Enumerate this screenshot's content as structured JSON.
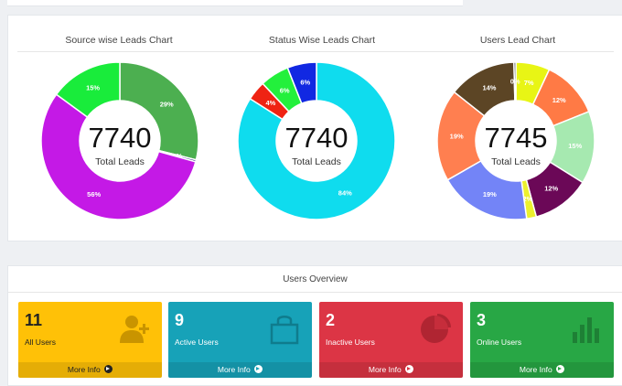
{
  "charts": [
    {
      "title": "Source wise Leads Chart",
      "center_value": "7740",
      "center_label": "Total Leads",
      "segments": [
        {
          "value": 29,
          "color": "#4caf50",
          "label": "29%"
        },
        {
          "value": 0.4,
          "color": "#1a237e",
          "label": "0%"
        },
        {
          "value": 56,
          "color": "#c419e6",
          "label": "56%"
        },
        {
          "value": 15,
          "color": "#19ec3b",
          "label": "15%"
        }
      ]
    },
    {
      "title": "Status Wise Leads Chart",
      "center_value": "7740",
      "center_label": "Total Leads",
      "segments": [
        {
          "value": 84,
          "color": "#0fdcee",
          "label": "84%"
        },
        {
          "value": 4,
          "color": "#ef2313",
          "label": "4%"
        },
        {
          "value": 6,
          "color": "#23f03c",
          "label": "6%"
        },
        {
          "value": 6,
          "color": "#1128e2",
          "label": "6%"
        }
      ]
    },
    {
      "title": "Users Lead Chart",
      "center_value": "7745",
      "center_label": "Total Leads",
      "segments": [
        {
          "value": 7,
          "color": "#e8f515",
          "label": "7%"
        },
        {
          "value": 12,
          "color": "#ff7a45",
          "label": "12%"
        },
        {
          "value": 15,
          "color": "#a6e9b0",
          "label": "15%"
        },
        {
          "value": 12,
          "color": "#6b0857",
          "label": "12%"
        },
        {
          "value": 2,
          "color": "#ecf02e",
          "label": "2%"
        },
        {
          "value": 19,
          "color": "#7384f7",
          "label": "19%"
        },
        {
          "value": 19,
          "color": "#ff7f50",
          "label": "19%"
        },
        {
          "value": 14,
          "color": "#5c4525",
          "label": "14%"
        },
        {
          "value": 0.4,
          "color": "#1a1a1a",
          "label": "0%"
        }
      ]
    }
  ],
  "users_overview": {
    "title": "Users Overview",
    "boxes": [
      {
        "count": "11",
        "label": "All Users",
        "more": "More Info",
        "color": "#ffc107",
        "icon": "user-plus-icon"
      },
      {
        "count": "9",
        "label": "Active Users",
        "more": "More Info",
        "color": "#17a2b8",
        "icon": "shopping-bag-icon"
      },
      {
        "count": "2",
        "label": "Inactive Users",
        "more": "More Info",
        "color": "#dc3545",
        "icon": "pie-chart-icon"
      },
      {
        "count": "3",
        "label": "Online Users",
        "more": "More Info",
        "color": "#28a745",
        "icon": "bar-chart-icon"
      }
    ]
  }
}
